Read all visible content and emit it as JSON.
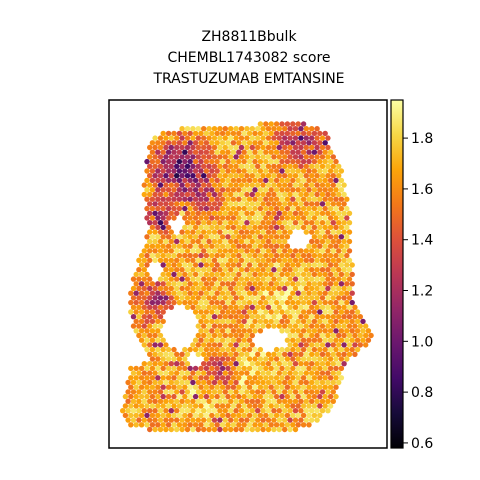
{
  "chart_data": {
    "type": "heatmap",
    "title_lines": [
      "ZH8811Bbulk",
      "CHEMBL1743082 score",
      "TRASTUZUMAB EMTANSINE"
    ],
    "colormap": "inferno",
    "colorbar": {
      "vmin": 0.58,
      "vmax": 1.95,
      "ticks": [
        0.6,
        0.8,
        1.0,
        1.2,
        1.4,
        1.6,
        1.8
      ],
      "tick_labels": [
        "0.6",
        "0.8",
        "1.0",
        "1.2",
        "1.4",
        "1.6",
        "1.8"
      ]
    },
    "axes": {
      "xticks": [],
      "yticks": [],
      "grid": false,
      "frame": true
    }
  }
}
